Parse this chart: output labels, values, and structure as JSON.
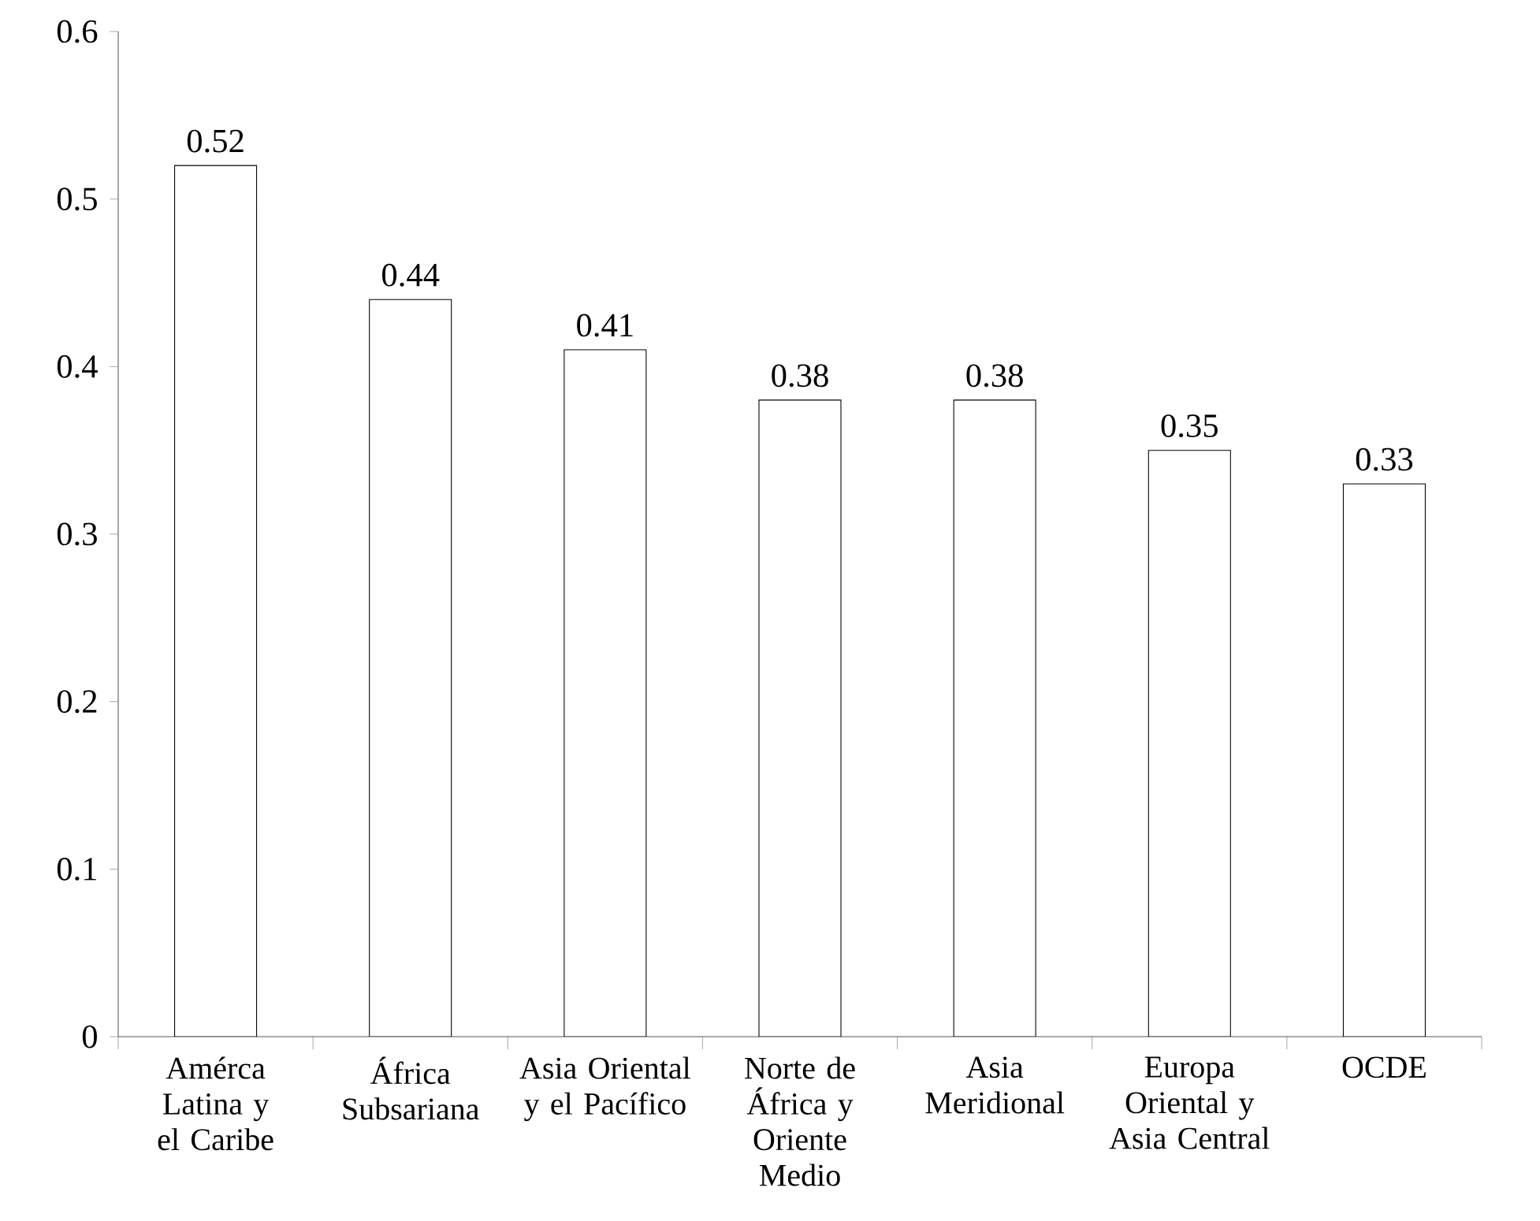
{
  "chart_data": {
    "type": "bar",
    "categories": [
      "Amérca Latina y el Caribe",
      "África Subsariana",
      "Asia Oriental y el Pacífico",
      "Norte de África y Oriente Medio",
      "Asia Meridional",
      "Europa Oriental y Asia Central",
      "OCDE"
    ],
    "values": [
      0.52,
      0.44,
      0.41,
      0.38,
      0.38,
      0.35,
      0.33
    ],
    "color": "#ffffff",
    "ylim": [
      0,
      0.6
    ],
    "yticks": [
      0,
      0.1,
      0.2,
      0.3,
      0.4,
      0.5,
      0.6
    ],
    "data_labels": true
  }
}
